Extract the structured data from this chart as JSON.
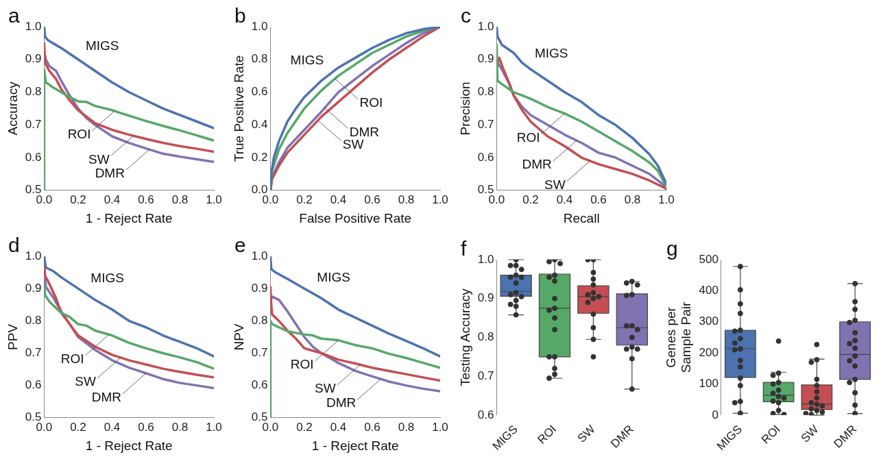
{
  "chart_data": [
    {
      "type": "line",
      "title": "a",
      "xlabel": "1 - Reject Rate",
      "ylabel": "Accuracy",
      "xlim": [
        0,
        1
      ],
      "ylim": [
        0.5,
        1
      ],
      "xticks": [
        {
          "value": 0,
          "label": "0.0"
        },
        {
          "value": 0.2,
          "label": "0.2"
        },
        {
          "value": 0.4,
          "label": "0.4"
        },
        {
          "value": 0.6,
          "label": "0.6"
        },
        {
          "value": 0.8,
          "label": "0.8"
        },
        {
          "value": 1,
          "label": "1.0"
        }
      ],
      "yticks": [
        {
          "value": 0.5,
          "label": "0.5"
        },
        {
          "value": 0.6,
          "label": "0.6"
        },
        {
          "value": 0.7,
          "label": "0.7"
        },
        {
          "value": 0.8,
          "label": "0.8"
        },
        {
          "value": 0.9,
          "label": "0.9"
        },
        {
          "value": 1,
          "label": "1.0"
        }
      ],
      "series": [
        {
          "color": "#4c72b0",
          "x": [
            0,
            0.005,
            0.02,
            0.05,
            0.1,
            0.2,
            0.3,
            0.4,
            0.5,
            0.6,
            0.7,
            0.8,
            0.9,
            1
          ],
          "values": [
            1.0,
            0.97,
            0.96,
            0.95,
            0.935,
            0.9,
            0.865,
            0.83,
            0.8,
            0.775,
            0.75,
            0.73,
            0.71,
            0.69
          ]
        },
        {
          "color": "#55a868",
          "x": [
            0,
            0,
            0.01,
            0.05,
            0.1,
            0.15,
            0.2,
            0.25,
            0.3,
            0.4,
            0.5,
            0.6,
            0.7,
            0.8,
            0.9,
            1
          ],
          "values": [
            0.5,
            0.87,
            0.83,
            0.815,
            0.8,
            0.785,
            0.772,
            0.77,
            0.758,
            0.745,
            0.728,
            0.712,
            0.697,
            0.683,
            0.668,
            0.652
          ]
        },
        {
          "color": "#c44e52",
          "x": [
            0,
            0.005,
            0.03,
            0.07,
            0.1,
            0.15,
            0.2,
            0.25,
            0.3,
            0.4,
            0.5,
            0.6,
            0.7,
            0.8,
            0.9,
            1
          ],
          "values": [
            0.95,
            0.89,
            0.865,
            0.84,
            0.81,
            0.775,
            0.745,
            0.725,
            0.705,
            0.685,
            0.67,
            0.657,
            0.645,
            0.635,
            0.627,
            0.618
          ]
        },
        {
          "color": "#8172b2",
          "x": [
            0,
            0.01,
            0.03,
            0.07,
            0.1,
            0.15,
            0.2,
            0.25,
            0.3,
            0.4,
            0.5,
            0.6,
            0.7,
            0.8,
            0.9,
            1
          ],
          "values": [
            0.925,
            0.9,
            0.88,
            0.865,
            0.835,
            0.79,
            0.75,
            0.72,
            0.7,
            0.665,
            0.645,
            0.628,
            0.612,
            0.603,
            0.595,
            0.587
          ]
        }
      ],
      "annotations": [
        {
          "text": "MIGS",
          "x": 0.22,
          "y": 0.893
        },
        {
          "text": "ROI",
          "x": 0.42,
          "y": 0.745
        },
        {
          "text": "SW",
          "x": 0.53,
          "y": 0.668
        },
        {
          "text": "DMR",
          "x": 0.62,
          "y": 0.625
        }
      ]
    },
    {
      "type": "line",
      "title": "b",
      "xlabel": "False Positive Rate",
      "ylabel": "True Positive Rate",
      "xlim": [
        0,
        1
      ],
      "ylim": [
        0,
        1
      ],
      "xticks": [
        {
          "value": 0,
          "label": "0.0"
        },
        {
          "value": 0.2,
          "label": "0.2"
        },
        {
          "value": 0.4,
          "label": "0.4"
        },
        {
          "value": 0.6,
          "label": "0.6"
        },
        {
          "value": 0.8,
          "label": "0.8"
        },
        {
          "value": 1,
          "label": "1.0"
        }
      ],
      "yticks": [
        {
          "value": 0,
          "label": "0.0"
        },
        {
          "value": 0.2,
          "label": "0.2"
        },
        {
          "value": 0.4,
          "label": "0.4"
        },
        {
          "value": 0.6,
          "label": "0.6"
        },
        {
          "value": 0.8,
          "label": "0.8"
        },
        {
          "value": 1,
          "label": "1.0"
        }
      ],
      "series": [
        {
          "color": "#4c72b0",
          "x": [
            0,
            0.005,
            0.02,
            0.05,
            0.1,
            0.15,
            0.2,
            0.3,
            0.4,
            0.5,
            0.6,
            0.7,
            0.8,
            0.9,
            1
          ],
          "values": [
            0,
            0.1,
            0.2,
            0.3,
            0.42,
            0.5,
            0.57,
            0.67,
            0.75,
            0.81,
            0.87,
            0.92,
            0.96,
            0.985,
            1
          ]
        },
        {
          "color": "#55a868",
          "x": [
            0,
            0.01,
            0.05,
            0.1,
            0.2,
            0.3,
            0.4,
            0.5,
            0.6,
            0.7,
            0.8,
            0.9,
            1
          ],
          "values": [
            0,
            0.12,
            0.25,
            0.35,
            0.5,
            0.61,
            0.7,
            0.77,
            0.84,
            0.89,
            0.94,
            0.975,
            1
          ]
        },
        {
          "color": "#c44e52",
          "x": [
            0,
            0.01,
            0.05,
            0.1,
            0.2,
            0.3,
            0.4,
            0.5,
            0.6,
            0.7,
            0.8,
            0.9,
            1
          ],
          "values": [
            0,
            0.07,
            0.15,
            0.23,
            0.34,
            0.45,
            0.54,
            0.63,
            0.72,
            0.8,
            0.87,
            0.94,
            1
          ]
        },
        {
          "color": "#8172b2",
          "x": [
            0,
            0.01,
            0.05,
            0.1,
            0.2,
            0.3,
            0.4,
            0.5,
            0.6,
            0.7,
            0.8,
            0.9,
            1
          ],
          "values": [
            0,
            0.08,
            0.17,
            0.26,
            0.37,
            0.48,
            0.6,
            0.68,
            0.76,
            0.83,
            0.9,
            0.96,
            1
          ]
        }
      ],
      "annotations": [
        {
          "text": "MIGS",
          "x": 0.33,
          "y": 0.7
        },
        {
          "text": "ROI",
          "x": 0.38,
          "y": 0.682
        },
        {
          "text": "DMR",
          "x": 0.32,
          "y": 0.504
        },
        {
          "text": "SW",
          "x": 0.28,
          "y": 0.428
        }
      ]
    },
    {
      "type": "line",
      "title": "c",
      "xlabel": "Recall",
      "ylabel": "Precision",
      "xlim": [
        0,
        1
      ],
      "ylim": [
        0.5,
        1
      ],
      "xticks": [
        {
          "value": 0,
          "label": "0.0"
        },
        {
          "value": 0.2,
          "label": "0.2"
        },
        {
          "value": 0.4,
          "label": "0.4"
        },
        {
          "value": 0.6,
          "label": "0.6"
        },
        {
          "value": 0.8,
          "label": "0.8"
        },
        {
          "value": 1,
          "label": "1.0"
        }
      ],
      "yticks": [
        {
          "value": 0.5,
          "label": "0.5"
        },
        {
          "value": 0.6,
          "label": "0.6"
        },
        {
          "value": 0.7,
          "label": "0.7"
        },
        {
          "value": 0.8,
          "label": "0.8"
        },
        {
          "value": 0.9,
          "label": "0.9"
        },
        {
          "value": 1,
          "label": "1.0"
        }
      ],
      "series": [
        {
          "color": "#4c72b0",
          "x": [
            0,
            0.005,
            0.03,
            0.1,
            0.15,
            0.2,
            0.3,
            0.4,
            0.5,
            0.6,
            0.7,
            0.8,
            0.9,
            0.95,
            1
          ],
          "values": [
            1.0,
            0.97,
            0.945,
            0.92,
            0.89,
            0.87,
            0.835,
            0.8,
            0.77,
            0.73,
            0.7,
            0.66,
            0.61,
            0.575,
            0.52
          ]
        },
        {
          "color": "#55a868",
          "x": [
            0,
            0.005,
            0.03,
            0.1,
            0.2,
            0.3,
            0.4,
            0.5,
            0.6,
            0.7,
            0.8,
            0.9,
            0.95,
            1
          ],
          "values": [
            0.945,
            0.835,
            0.825,
            0.8,
            0.78,
            0.755,
            0.735,
            0.71,
            0.68,
            0.65,
            0.62,
            0.585,
            0.56,
            0.51
          ]
        },
        {
          "color": "#c44e52",
          "x": [
            0,
            0.015,
            0.04,
            0.08,
            0.1,
            0.15,
            0.2,
            0.3,
            0.4,
            0.5,
            0.6,
            0.7,
            0.8,
            0.9,
            1
          ],
          "values": [
            0.88,
            0.905,
            0.87,
            0.82,
            0.79,
            0.745,
            0.71,
            0.665,
            0.635,
            0.6,
            0.58,
            0.565,
            0.55,
            0.53,
            0.505
          ]
        },
        {
          "color": "#8172b2",
          "x": [
            0,
            0.03,
            0.07,
            0.1,
            0.15,
            0.2,
            0.3,
            0.4,
            0.5,
            0.6,
            0.7,
            0.8,
            0.9,
            1
          ],
          "values": [
            0.895,
            0.87,
            0.83,
            0.79,
            0.755,
            0.73,
            0.7,
            0.67,
            0.645,
            0.615,
            0.6,
            0.575,
            0.55,
            0.51
          ]
        }
      ],
      "annotations": [
        {
          "text": "MIGS",
          "x": 0.2,
          "y": 0.87
        },
        {
          "text": "ROI",
          "x": 0.4,
          "y": 0.735
        },
        {
          "text": "DMR",
          "x": 0.47,
          "y": 0.652
        },
        {
          "text": "SW",
          "x": 0.55,
          "y": 0.59
        }
      ]
    },
    {
      "type": "line",
      "title": "d",
      "xlabel": "1 - Reject Rate",
      "ylabel": "PPV",
      "xlim": [
        0,
        1
      ],
      "ylim": [
        0.5,
        1
      ],
      "xticks": [
        {
          "value": 0,
          "label": "0.0"
        },
        {
          "value": 0.2,
          "label": "0.2"
        },
        {
          "value": 0.4,
          "label": "0.4"
        },
        {
          "value": 0.6,
          "label": "0.6"
        },
        {
          "value": 0.8,
          "label": "0.8"
        },
        {
          "value": 1,
          "label": "1.0"
        }
      ],
      "yticks": [
        {
          "value": 0.5,
          "label": "0.5"
        },
        {
          "value": 0.6,
          "label": "0.6"
        },
        {
          "value": 0.7,
          "label": "0.7"
        },
        {
          "value": 0.8,
          "label": "0.8"
        },
        {
          "value": 0.9,
          "label": "0.9"
        },
        {
          "value": 1,
          "label": "1.0"
        }
      ],
      "series": [
        {
          "color": "#4c72b0",
          "x": [
            0,
            0.01,
            0.05,
            0.1,
            0.2,
            0.3,
            0.4,
            0.5,
            0.6,
            0.7,
            0.8,
            0.9,
            1
          ],
          "values": [
            1.0,
            0.965,
            0.955,
            0.935,
            0.9,
            0.865,
            0.835,
            0.8,
            0.78,
            0.755,
            0.735,
            0.715,
            0.69
          ]
        },
        {
          "color": "#55a868",
          "x": [
            0,
            0.005,
            0.03,
            0.07,
            0.1,
            0.15,
            0.2,
            0.25,
            0.3,
            0.4,
            0.5,
            0.6,
            0.7,
            0.8,
            0.9,
            1
          ],
          "values": [
            0.91,
            0.88,
            0.86,
            0.84,
            0.825,
            0.812,
            0.79,
            0.785,
            0.77,
            0.755,
            0.732,
            0.715,
            0.7,
            0.687,
            0.672,
            0.652
          ]
        },
        {
          "color": "#c44e52",
          "x": [
            0,
            0.005,
            0.03,
            0.07,
            0.1,
            0.15,
            0.2,
            0.3,
            0.4,
            0.5,
            0.6,
            0.7,
            0.8,
            0.9,
            1
          ],
          "values": [
            1.0,
            0.94,
            0.915,
            0.87,
            0.825,
            0.79,
            0.755,
            0.72,
            0.695,
            0.678,
            0.665,
            0.652,
            0.642,
            0.633,
            0.625
          ]
        },
        {
          "color": "#8172b2",
          "x": [
            0,
            0.01,
            0.05,
            0.1,
            0.15,
            0.2,
            0.3,
            0.4,
            0.5,
            0.6,
            0.7,
            0.8,
            0.9,
            1
          ],
          "values": [
            0.95,
            0.905,
            0.875,
            0.83,
            0.79,
            0.75,
            0.71,
            0.678,
            0.655,
            0.638,
            0.62,
            0.608,
            0.6,
            0.592
          ]
        }
      ],
      "annotations": [
        {
          "text": "MIGS",
          "x": 0.25,
          "y": 0.883
        },
        {
          "text": "ROI",
          "x": 0.38,
          "y": 0.757
        },
        {
          "text": "SW",
          "x": 0.45,
          "y": 0.686
        },
        {
          "text": "DMR",
          "x": 0.6,
          "y": 0.638
        }
      ]
    },
    {
      "type": "line",
      "title": "e",
      "xlabel": "1 - Reject Rate",
      "ylabel": "NPV",
      "xlim": [
        0,
        1
      ],
      "ylim": [
        0.5,
        1
      ],
      "xticks": [
        {
          "value": 0,
          "label": "0.0"
        },
        {
          "value": 0.2,
          "label": "0.2"
        },
        {
          "value": 0.4,
          "label": "0.4"
        },
        {
          "value": 0.6,
          "label": "0.6"
        },
        {
          "value": 0.8,
          "label": "0.8"
        },
        {
          "value": 1,
          "label": "1.0"
        }
      ],
      "yticks": [
        {
          "value": 0.5,
          "label": "0.5"
        },
        {
          "value": 0.6,
          "label": "0.6"
        },
        {
          "value": 0.7,
          "label": "0.7"
        },
        {
          "value": 0.8,
          "label": "0.8"
        },
        {
          "value": 0.9,
          "label": "0.9"
        },
        {
          "value": 1,
          "label": "1.0"
        }
      ],
      "series": [
        {
          "color": "#4c72b0",
          "x": [
            0,
            0.005,
            0.03,
            0.1,
            0.2,
            0.3,
            0.4,
            0.5,
            0.6,
            0.7,
            0.8,
            0.9,
            1
          ],
          "values": [
            1.0,
            0.96,
            0.95,
            0.93,
            0.9,
            0.87,
            0.835,
            0.81,
            0.785,
            0.76,
            0.738,
            0.715,
            0.69
          ]
        },
        {
          "color": "#55a868",
          "x": [
            0,
            0,
            0.01,
            0.05,
            0.1,
            0.2,
            0.25,
            0.3,
            0.4,
            0.5,
            0.6,
            0.7,
            0.8,
            0.9,
            1
          ],
          "values": [
            0.5,
            0.8,
            0.79,
            0.78,
            0.768,
            0.758,
            0.755,
            0.745,
            0.74,
            0.725,
            0.715,
            0.698,
            0.685,
            0.67,
            0.655
          ]
        },
        {
          "color": "#c44e52",
          "x": [
            0,
            0.005,
            0.01,
            0.05,
            0.1,
            0.15,
            0.2,
            0.3,
            0.4,
            0.5,
            0.6,
            0.7,
            0.8,
            0.9,
            1
          ],
          "values": [
            0.905,
            0.85,
            0.82,
            0.8,
            0.77,
            0.745,
            0.715,
            0.7,
            0.68,
            0.668,
            0.655,
            0.645,
            0.635,
            0.625,
            0.615
          ]
        },
        {
          "color": "#8172b2",
          "x": [
            0,
            0.01,
            0.05,
            0.1,
            0.15,
            0.2,
            0.25,
            0.3,
            0.4,
            0.5,
            0.6,
            0.7,
            0.8,
            0.9,
            1
          ],
          "values": [
            0.86,
            0.875,
            0.865,
            0.83,
            0.79,
            0.75,
            0.72,
            0.7,
            0.67,
            0.645,
            0.628,
            0.612,
            0.6,
            0.59,
            0.582
          ]
        }
      ],
      "annotations": [
        {
          "text": "MIGS",
          "x": 0.25,
          "y": 0.885
        },
        {
          "text": "ROI",
          "x": 0.4,
          "y": 0.74
        },
        {
          "text": "SW",
          "x": 0.53,
          "y": 0.665
        },
        {
          "text": "DMR",
          "x": 0.65,
          "y": 0.62
        }
      ]
    },
    {
      "type": "box",
      "title": "f",
      "ylabel": "Testing Accuracy",
      "categories": [
        "MIGS",
        "ROI",
        "SW",
        "DMR"
      ],
      "ylim": [
        0.6,
        1
      ],
      "yticks": [
        {
          "value": 0.6,
          "label": "0.6"
        },
        {
          "value": 0.7,
          "label": "0.7"
        },
        {
          "value": 0.8,
          "label": "0.8"
        },
        {
          "value": 0.9,
          "label": "0.9"
        },
        {
          "value": 1,
          "label": "1.0"
        }
      ],
      "colors": [
        "#4c72b0",
        "#55a868",
        "#c44e52",
        "#8172b2"
      ],
      "marker": "circle",
      "boxes": [
        {
          "low": 0.858,
          "q1": 0.906,
          "median": 0.918,
          "q3": 0.96,
          "high": 1.0
        },
        {
          "low": 0.695,
          "q1": 0.75,
          "median": 0.875,
          "q3": 0.963,
          "high": 1.0
        },
        {
          "low": 0.795,
          "q1": 0.862,
          "median": 0.905,
          "q3": 0.933,
          "high": 1.0
        },
        {
          "low": 0.667,
          "q1": 0.78,
          "median": 0.825,
          "q3": 0.912,
          "high": 0.944
        }
      ],
      "series": [
        {
          "type": "scatter",
          "color": "#333333",
          "x": [
            "MIGS",
            "MIGS",
            "MIGS",
            "MIGS",
            "MIGS",
            "MIGS",
            "MIGS",
            "MIGS",
            "MIGS",
            "MIGS",
            "MIGS",
            "MIGS",
            "MIGS",
            "MIGS",
            "MIGS",
            "ROI",
            "ROI",
            "ROI",
            "ROI",
            "ROI",
            "ROI",
            "ROI",
            "ROI",
            "ROI",
            "ROI",
            "ROI",
            "ROI",
            "ROI",
            "ROI",
            "ROI",
            "ROI",
            "SW",
            "SW",
            "SW",
            "SW",
            "SW",
            "SW",
            "SW",
            "SW",
            "SW",
            "SW",
            "SW",
            "SW",
            "SW",
            "SW",
            "DMR",
            "DMR",
            "DMR",
            "DMR",
            "DMR",
            "DMR",
            "DMR",
            "DMR",
            "DMR",
            "DMR",
            "DMR",
            "DMR",
            "DMR",
            "DMR"
          ],
          "values": [
            1.0,
            0.985,
            0.985,
            0.975,
            0.96,
            0.955,
            0.955,
            0.94,
            0.915,
            0.91,
            0.905,
            0.895,
            0.885,
            0.88,
            0.858,
            1.0,
            0.995,
            0.99,
            0.96,
            0.955,
            0.945,
            0.9,
            0.875,
            0.87,
            0.85,
            0.82,
            0.75,
            0.75,
            0.72,
            0.705,
            0.695,
            1.0,
            1.0,
            0.967,
            0.95,
            0.935,
            0.915,
            0.91,
            0.905,
            0.9,
            0.89,
            0.86,
            0.825,
            0.795,
            0.75,
            0.944,
            0.94,
            0.935,
            0.91,
            0.908,
            0.83,
            0.83,
            0.82,
            0.8,
            0.775,
            0.77,
            0.77,
            0.745,
            0.667
          ]
        }
      ]
    },
    {
      "type": "box",
      "title": "g",
      "ylabel": "Genes per\nSample Pair",
      "categories": [
        "MIGS",
        "ROI",
        "SW",
        "DMR"
      ],
      "ylim": [
        0,
        500
      ],
      "yticks": [
        0,
        100,
        200,
        300,
        400,
        500
      ],
      "colors": [
        "#4c72b0",
        "#55a868",
        "#c44e52",
        "#8172b2"
      ],
      "marker": "circle",
      "boxes": [
        {
          "low": 6,
          "q1": 121,
          "median": 214,
          "q3": 273,
          "high": 478
        },
        {
          "low": 2,
          "q1": 43,
          "median": 64,
          "q3": 105,
          "high": 138
        },
        {
          "low": 0,
          "q1": 18,
          "median": 35,
          "q3": 97,
          "high": 180
        },
        {
          "low": 5,
          "q1": 115,
          "median": 195,
          "q3": 300,
          "high": 423
        }
      ],
      "series": [
        {
          "type": "scatter",
          "color": "#333333",
          "x": [
            "MIGS",
            "MIGS",
            "MIGS",
            "MIGS",
            "MIGS",
            "MIGS",
            "MIGS",
            "MIGS",
            "MIGS",
            "MIGS",
            "MIGS",
            "MIGS",
            "MIGS",
            "MIGS",
            "MIGS",
            "MIGS",
            "MIGS",
            "ROI",
            "ROI",
            "ROI",
            "ROI",
            "ROI",
            "ROI",
            "ROI",
            "ROI",
            "ROI",
            "ROI",
            "ROI",
            "ROI",
            "ROI",
            "ROI",
            "SW",
            "SW",
            "SW",
            "SW",
            "SW",
            "SW",
            "SW",
            "SW",
            "SW",
            "SW",
            "SW",
            "SW",
            "SW",
            "SW",
            "SW",
            "DMR",
            "DMR",
            "DMR",
            "DMR",
            "DMR",
            "DMR",
            "DMR",
            "DMR",
            "DMR",
            "DMR",
            "DMR",
            "DMR",
            "DMR",
            "DMR",
            "DMR",
            "DMR",
            "DMR"
          ],
          "values": [
            478,
            403,
            358,
            327,
            273,
            270,
            246,
            232,
            213,
            210,
            176,
            155,
            119,
            95,
            44,
            40,
            6,
            238,
            135,
            128,
            105,
            100,
            80,
            70,
            60,
            55,
            45,
            40,
            15,
            5,
            2,
            227,
            178,
            170,
            115,
            95,
            75,
            55,
            40,
            35,
            30,
            20,
            15,
            10,
            5,
            2,
            423,
            365,
            340,
            305,
            298,
            265,
            240,
            230,
            215,
            190,
            175,
            158,
            115,
            105,
            72,
            32,
            5
          ]
        }
      ]
    }
  ]
}
